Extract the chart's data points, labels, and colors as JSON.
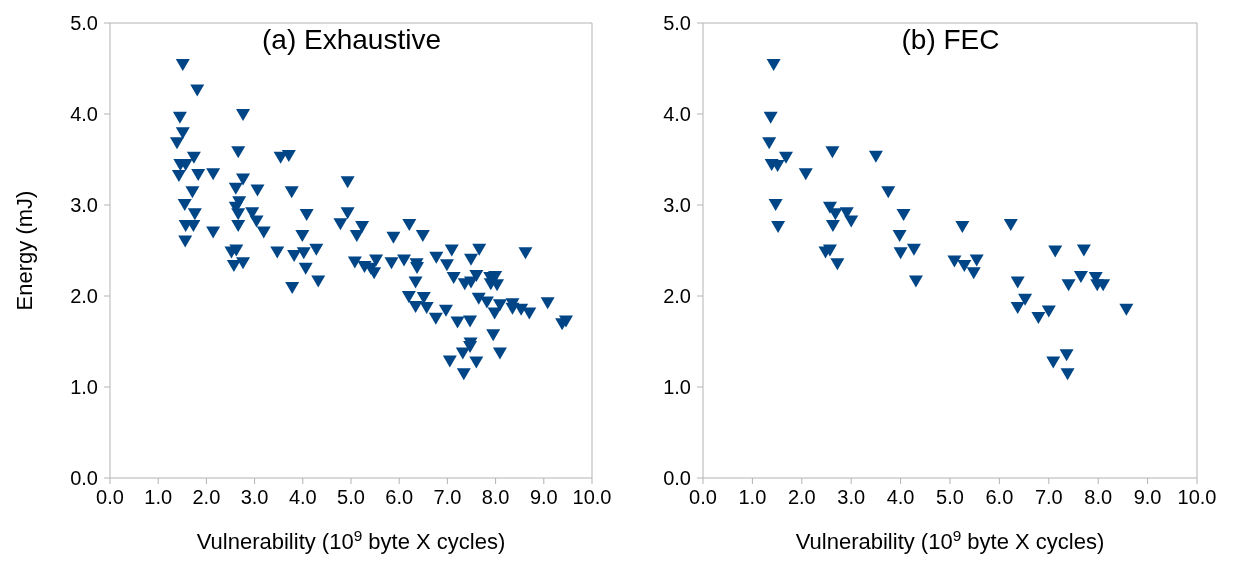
{
  "chart_data": [
    {
      "type": "scatter",
      "title": "(a) Exhaustive",
      "xlabel": "Vulnerability (10$^{9}$ byte X cycles)",
      "ylabel": "Energy (mJ)",
      "grid": false,
      "legend": false,
      "marker": "triangle",
      "xlim": [
        0,
        10
      ],
      "ylim": [
        0,
        5
      ],
      "xticks": [
        {
          "value": 0,
          "label": "0.0"
        },
        {
          "value": 1,
          "label": "1.0"
        },
        {
          "value": 2,
          "label": "2.0"
        },
        {
          "value": 3,
          "label": "3.0"
        },
        {
          "value": 4,
          "label": "4.0"
        },
        {
          "value": 5,
          "label": "5.0"
        },
        {
          "value": 6,
          "label": "6.0"
        },
        {
          "value": 7,
          "label": "7.0"
        },
        {
          "value": 8,
          "label": "8.0"
        },
        {
          "value": 9,
          "label": "9.0"
        },
        {
          "value": 10,
          "label": "10.0"
        }
      ],
      "yticks": [
        {
          "value": 0,
          "label": "0.0"
        },
        {
          "value": 1,
          "label": "1.0"
        },
        {
          "value": 2,
          "label": "2.0"
        },
        {
          "value": 3,
          "label": "3.0"
        },
        {
          "value": 4,
          "label": "4.0"
        },
        {
          "value": 5,
          "label": "5.0"
        }
      ],
      "series": [
        {
          "color": "#004586",
          "x": [
            1.51,
            1.81,
            1.45,
            2.76,
            1.51,
            1.39,
            1.74,
            2.66,
            3.54,
            3.71,
            1.46,
            1.57,
            1.43,
            1.83,
            2.14,
            2.76,
            1.71,
            2.61,
            3.06,
            3.77,
            4.93,
            1.55,
            2.68,
            2.61,
            1.76,
            2.66,
            2.95,
            3.04,
            4.08,
            4.93,
            4.78,
            5.23,
            1.57,
            1.73,
            2.66,
            5.12,
            2.14,
            3.19,
            1.56,
            3.99,
            2.52,
            2.62,
            3.47,
            3.82,
            4.02,
            4.28,
            2.57,
            2.76,
            4.06,
            3.78,
            4.32,
            5.08,
            5.28,
            6.21,
            5.88,
            6.49,
            5.52,
            5.41,
            5.48,
            5.84,
            6.1,
            6.36,
            6.37,
            6.34,
            6.77,
            7.09,
            6.99,
            7.49,
            7.66,
            8.62,
            7.13,
            7.36,
            7.49,
            7.6,
            7.89,
            7.99,
            7.9,
            8.03,
            6.2,
            6.51,
            6.34,
            6.57,
            6.97,
            6.76,
            7.21,
            7.47,
            7.65,
            7.82,
            8.09,
            7.98,
            8.35,
            8.35,
            8.53,
            8.7,
            9.08,
            9.38,
            9.46,
            7.95,
            7.48,
            7.47,
            7.32,
            7.05,
            7.6,
            8.09,
            7.34
          ],
          "values": [
            4.55,
            4.27,
            3.97,
            4.0,
            3.8,
            3.69,
            3.53,
            3.59,
            3.53,
            3.55,
            3.45,
            3.45,
            3.33,
            3.34,
            3.35,
            3.29,
            3.15,
            3.19,
            3.17,
            3.15,
            3.26,
            3.01,
            3.04,
            2.98,
            2.91,
            2.91,
            2.92,
            2.83,
            2.9,
            2.92,
            2.8,
            2.77,
            2.78,
            2.78,
            2.78,
            2.67,
            2.71,
            2.71,
            2.61,
            2.67,
            2.49,
            2.51,
            2.49,
            2.45,
            2.48,
            2.52,
            2.34,
            2.37,
            2.31,
            2.1,
            2.17,
            2.38,
            2.33,
            2.79,
            2.65,
            2.67,
            2.4,
            2.31,
            2.26,
            2.37,
            2.4,
            2.36,
            2.32,
            2.16,
            2.43,
            2.51,
            2.35,
            2.41,
            2.52,
            2.48,
            2.21,
            2.14,
            2.16,
            2.23,
            2.21,
            2.22,
            2.14,
            2.13,
            2.0,
            1.99,
            1.89,
            1.88,
            1.85,
            1.76,
            1.72,
            1.73,
            1.98,
            1.94,
            1.91,
            1.82,
            1.92,
            1.87,
            1.86,
            1.82,
            1.93,
            1.7,
            1.73,
            1.58,
            1.49,
            1.45,
            1.38,
            1.29,
            1.28,
            1.38,
            1.15
          ]
        }
      ]
    },
    {
      "type": "scatter",
      "title": "(b) FEC",
      "xlabel": "Vulnerability (10$^{9}$ byte X cycles)",
      "grid": false,
      "legend": false,
      "marker": "triangle",
      "xlim": [
        0,
        10
      ],
      "ylim": [
        0,
        5
      ],
      "xticks": [
        {
          "value": 0,
          "label": "0.0"
        },
        {
          "value": 1,
          "label": "1.0"
        },
        {
          "value": 2,
          "label": "2.0"
        },
        {
          "value": 3,
          "label": "3.0"
        },
        {
          "value": 4,
          "label": "4.0"
        },
        {
          "value": 5,
          "label": "5.0"
        },
        {
          "value": 6,
          "label": "6.0"
        },
        {
          "value": 7,
          "label": "7.0"
        },
        {
          "value": 8,
          "label": "8.0"
        },
        {
          "value": 9,
          "label": "9.0"
        },
        {
          "value": 10,
          "label": "10.0"
        }
      ],
      "yticks": [
        {
          "value": 0,
          "label": "0.0"
        },
        {
          "value": 1,
          "label": "1.0"
        },
        {
          "value": 2,
          "label": "2.0"
        },
        {
          "value": 3,
          "label": "3.0"
        },
        {
          "value": 4,
          "label": "4.0"
        },
        {
          "value": 5,
          "label": "5.0"
        }
      ],
      "series": [
        {
          "color": "#004586",
          "x": [
            1.43,
            1.37,
            1.34,
            1.39,
            1.51,
            1.68,
            2.08,
            2.62,
            3.5,
            1.47,
            1.52,
            2.57,
            2.68,
            2.91,
            3.0,
            2.63,
            3.75,
            4.06,
            3.98,
            4.0,
            4.27,
            4.31,
            2.48,
            2.57,
            2.72,
            5.25,
            5.09,
            5.29,
            5.54,
            5.48,
            6.23,
            6.37,
            6.52,
            6.37,
            6.79,
            7.0,
            7.13,
            7.71,
            7.4,
            7.65,
            7.95,
            7.98,
            8.1,
            8.57,
            7.09,
            7.36,
            7.38
          ],
          "values": [
            4.55,
            3.97,
            3.69,
            3.45,
            3.44,
            3.53,
            3.35,
            3.59,
            3.54,
            3.01,
            2.77,
            2.98,
            2.91,
            2.92,
            2.83,
            2.78,
            3.15,
            2.9,
            2.67,
            2.48,
            2.52,
            2.17,
            2.49,
            2.51,
            2.36,
            2.77,
            2.39,
            2.34,
            2.4,
            2.26,
            2.79,
            2.16,
            1.97,
            1.88,
            1.77,
            1.84,
            2.5,
            2.51,
            2.13,
            2.22,
            2.21,
            2.13,
            2.13,
            1.86,
            1.28,
            1.36,
            1.15
          ]
        }
      ]
    }
  ]
}
